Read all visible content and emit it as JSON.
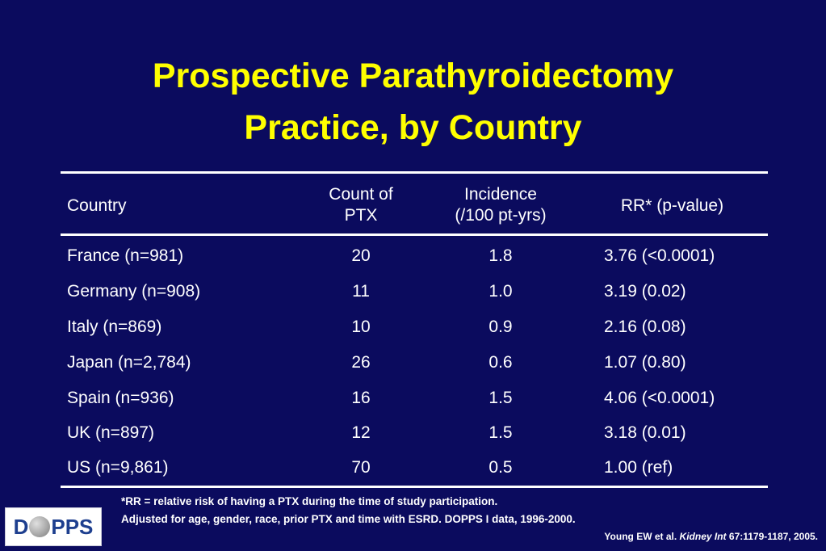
{
  "slide": {
    "title_line1": "Prospective Parathyroidectomy",
    "title_line2": "Practice, by Country"
  },
  "table": {
    "headers": {
      "country": "Country",
      "count_line1": "Count of",
      "count_line2": "PTX",
      "incidence_line1": "Incidence",
      "incidence_line2": "(/100 pt-yrs)",
      "rr": "RR* (p-value)"
    },
    "rows": [
      {
        "country": "France (n=981)",
        "count": "20",
        "incidence": "1.8",
        "rr": "3.76 (<0.0001)"
      },
      {
        "country": "Germany (n=908)",
        "count": "11",
        "incidence": "1.0",
        "rr": "3.19 (0.02)"
      },
      {
        "country": "Italy (n=869)",
        "count": "10",
        "incidence": "0.9",
        "rr": "2.16 (0.08)"
      },
      {
        "country": "Japan (n=2,784)",
        "count": "26",
        "incidence": "0.6",
        "rr": "1.07 (0.80)"
      },
      {
        "country": "Spain (n=936)",
        "count": "16",
        "incidence": "1.5",
        "rr": "4.06 (<0.0001)"
      },
      {
        "country": "UK (n=897)",
        "count": "12",
        "incidence": "1.5",
        "rr": "3.18 (0.01)"
      },
      {
        "country": "US (n=9,861)",
        "count": "70",
        "incidence": "0.5",
        "rr": "1.00 (ref)"
      }
    ]
  },
  "footnote": {
    "line1": "*RR = relative risk of having a PTX during the time of study participation.",
    "line2": "Adjusted for age, gender, race, prior PTX and time with ESRD. DOPPS I data, 1996-2000."
  },
  "citation": {
    "authors": "Young EW et al. ",
    "journal": "Kidney Int",
    "details": " 67:1179-1187, 2005."
  },
  "logo": {
    "text_left": "D",
    "text_right": "PPS"
  },
  "colors": {
    "background": "#0b0b5e",
    "title": "#ffff00",
    "text": "#ffffff"
  }
}
